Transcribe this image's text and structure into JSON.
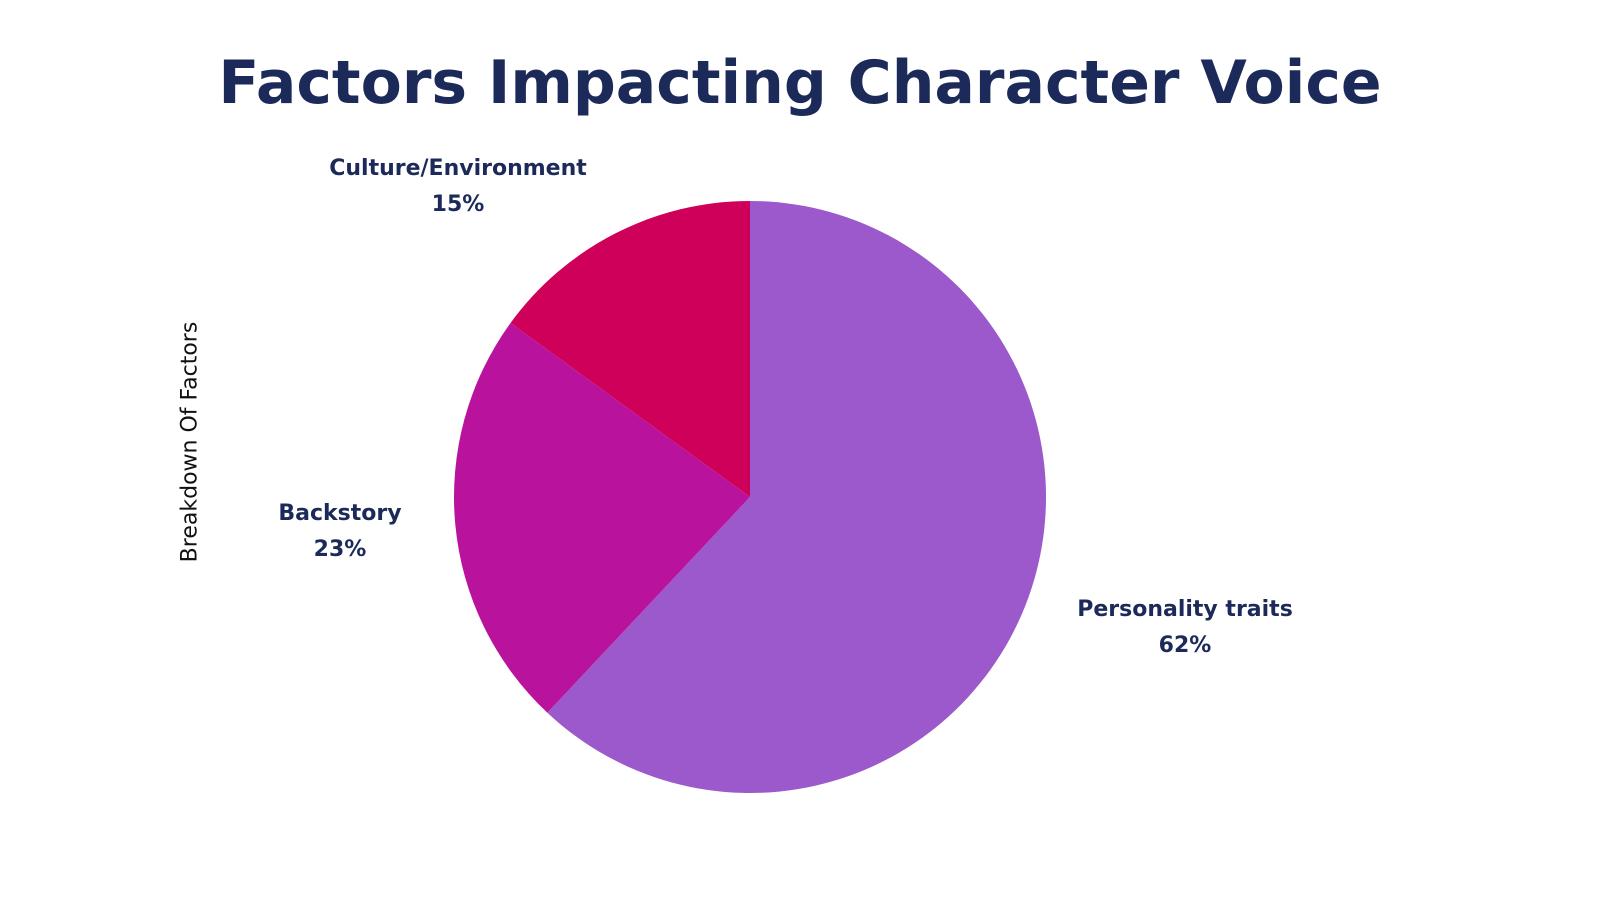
{
  "chart_data": {
    "type": "pie",
    "title": "Factors Impacting Character Voice",
    "ylabel": "Breakdown Of Factors",
    "slices": [
      {
        "label": "Personality traits",
        "value": 62,
        "display": "62%",
        "color": "#9b59cc"
      },
      {
        "label": "Backstory",
        "value": 23,
        "display": "23%",
        "color": "#b9139e"
      },
      {
        "label": "Culture/Environment",
        "value": 15,
        "display": "15%",
        "color": "#cf0059"
      }
    ],
    "start": "top",
    "direction": "clockwise"
  }
}
